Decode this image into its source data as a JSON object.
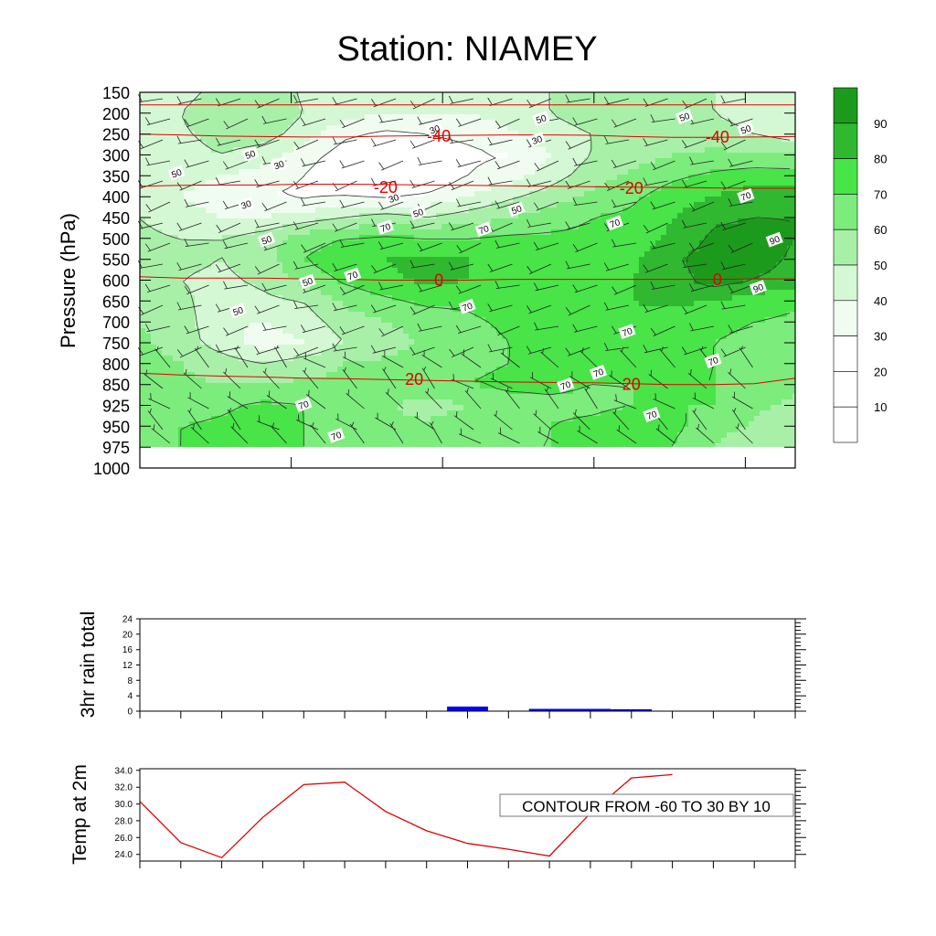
{
  "title": "Station: NIAMEY",
  "colors": {
    "contour_fill": [
      "#ffffff",
      "#ffffff",
      "#ffffff",
      "#f0fcf0",
      "#d4f8d4",
      "#a8f0a8",
      "#7cec7c",
      "#48e448",
      "#30b830",
      "#1c9a1c"
    ],
    "temperature_line": "#e00000",
    "rain_bar": "#0000ff",
    "temp2m_line": "#e00000"
  },
  "chart_data": [
    {
      "type": "heatmap",
      "name": "time-pressure cross section",
      "ylabel": "Pressure (hPa)",
      "yticks": [
        150,
        200,
        250,
        300,
        350,
        400,
        450,
        500,
        550,
        600,
        650,
        700,
        750,
        800,
        850,
        925,
        950,
        975,
        1000
      ],
      "y_reversed": true,
      "time_steps": 17,
      "fill_quantity": "relative humidity (%)",
      "colorbar": {
        "levels": [
          10,
          20,
          30,
          40,
          50,
          60,
          70,
          80,
          90
        ]
      },
      "rh_rows_top_to_bottom": [
        [
          50,
          45,
          55,
          60,
          48,
          45,
          40,
          40,
          45,
          45,
          50,
          55,
          55,
          50,
          50,
          45,
          45
        ],
        [
          50,
          50,
          60,
          60,
          50,
          45,
          40,
          40,
          40,
          45,
          50,
          55,
          55,
          55,
          50,
          45,
          45
        ],
        [
          45,
          48,
          55,
          55,
          45,
          32,
          28,
          30,
          32,
          38,
          45,
          50,
          52,
          55,
          55,
          50,
          45
        ],
        [
          40,
          45,
          50,
          45,
          35,
          25,
          20,
          25,
          28,
          30,
          40,
          50,
          55,
          60,
          62,
          62,
          60
        ],
        [
          42,
          45,
          40,
          35,
          30,
          20,
          15,
          20,
          30,
          35,
          45,
          55,
          62,
          68,
          72,
          75,
          75
        ],
        [
          45,
          40,
          35,
          30,
          28,
          30,
          28,
          32,
          40,
          48,
          55,
          62,
          68,
          75,
          80,
          85,
          85
        ],
        [
          50,
          45,
          40,
          40,
          45,
          50,
          55,
          50,
          55,
          60,
          65,
          70,
          72,
          80,
          88,
          90,
          90
        ],
        [
          52,
          50,
          50,
          55,
          65,
          70,
          72,
          70,
          70,
          72,
          72,
          72,
          75,
          82,
          92,
          95,
          90
        ],
        [
          55,
          52,
          50,
          55,
          70,
          78,
          80,
          82,
          80,
          80,
          80,
          80,
          78,
          88,
          95,
          95,
          88
        ],
        [
          55,
          50,
          48,
          52,
          62,
          72,
          78,
          82,
          80,
          78,
          78,
          80,
          80,
          85,
          95,
          90,
          85
        ],
        [
          58,
          52,
          45,
          48,
          50,
          62,
          68,
          72,
          72,
          75,
          75,
          78,
          80,
          82,
          80,
          75,
          72
        ],
        [
          60,
          55,
          42,
          40,
          45,
          55,
          60,
          65,
          68,
          72,
          72,
          75,
          78,
          75,
          72,
          70,
          68
        ],
        [
          62,
          55,
          45,
          35,
          40,
          50,
          55,
          62,
          65,
          70,
          70,
          72,
          72,
          72,
          70,
          68,
          65
        ],
        [
          65,
          60,
          55,
          50,
          55,
          60,
          62,
          65,
          68,
          70,
          72,
          72,
          72,
          72,
          70,
          68,
          65
        ],
        [
          65,
          62,
          60,
          60,
          62,
          62,
          65,
          68,
          70,
          72,
          72,
          70,
          70,
          70,
          70,
          66,
          62
        ],
        [
          65,
          65,
          68,
          72,
          70,
          65,
          62,
          55,
          60,
          66,
          68,
          68,
          70,
          70,
          70,
          62,
          58
        ],
        [
          65,
          70,
          72,
          75,
          70,
          65,
          62,
          62,
          65,
          66,
          70,
          72,
          75,
          72,
          66,
          58,
          50
        ],
        [
          65,
          70,
          80,
          75,
          70,
          65,
          65,
          68,
          70,
          70,
          70,
          76,
          76,
          70,
          60,
          50,
          52
        ]
      ],
      "temperature_contours": [
        {
          "label": "-40",
          "y_hPa": [
            250,
            252,
            255,
            256,
            257,
            257,
            255,
            254,
            253,
            252,
            252,
            253,
            256,
            258,
            258,
            257,
            256
          ]
        },
        {
          "label": "-20",
          "y_hPa": [
            375,
            373,
            372,
            372,
            370,
            370,
            371,
            372,
            373,
            374,
            375,
            376,
            377,
            378,
            379,
            380,
            380
          ]
        },
        {
          "label": "0",
          "y_hPa": [
            592,
            595,
            595,
            595,
            597,
            598,
            600,
            600,
            600,
            598,
            598,
            598,
            598,
            598,
            598,
            597,
            597
          ]
        },
        {
          "label": "20",
          "y_hPa": [
            823,
            827,
            830,
            832,
            835,
            836,
            838,
            840,
            842,
            844,
            845,
            846,
            848,
            850,
            850,
            848,
            835
          ]
        }
      ],
      "upper_line_y_hPa": 180,
      "rh_contour_labels": [
        {
          "text": "50",
          "t": 9.8,
          "p": 215
        },
        {
          "text": "50",
          "t": 13.3,
          "p": 210
        },
        {
          "text": "50",
          "t": 14.8,
          "p": 240
        },
        {
          "text": "30",
          "t": 7.2,
          "p": 240
        },
        {
          "text": "30",
          "t": 9.7,
          "p": 265
        },
        {
          "text": "50",
          "t": 2.7,
          "p": 300
        },
        {
          "text": "30",
          "t": 3.4,
          "p": 325
        },
        {
          "text": "50",
          "t": 0.9,
          "p": 345
        },
        {
          "text": "30",
          "t": 6.2,
          "p": 405
        },
        {
          "text": "30",
          "t": 2.6,
          "p": 420
        },
        {
          "text": "50",
          "t": 6.8,
          "p": 440
        },
        {
          "text": "50",
          "t": 9.2,
          "p": 432
        },
        {
          "text": "70",
          "t": 14.8,
          "p": 400
        },
        {
          "text": "70",
          "t": 11.6,
          "p": 465
        },
        {
          "text": "70",
          "t": 6.0,
          "p": 475
        },
        {
          "text": "70",
          "t": 8.4,
          "p": 480
        },
        {
          "text": "50",
          "t": 3.1,
          "p": 505
        },
        {
          "text": "90",
          "t": 15.5,
          "p": 505
        },
        {
          "text": "70",
          "t": 5.2,
          "p": 590
        },
        {
          "text": "50",
          "t": 4.1,
          "p": 605
        },
        {
          "text": "90",
          "t": 15.1,
          "p": 620
        },
        {
          "text": "70",
          "t": 8.0,
          "p": 665
        },
        {
          "text": "50",
          "t": 2.4,
          "p": 675
        },
        {
          "text": "70",
          "t": 11.9,
          "p": 725
        },
        {
          "text": "70",
          "t": 14.0,
          "p": 795
        },
        {
          "text": "70",
          "t": 11.2,
          "p": 823
        },
        {
          "text": "70",
          "t": 10.4,
          "p": 855
        },
        {
          "text": "70",
          "t": 4.0,
          "p": 925
        },
        {
          "text": "70",
          "t": 12.5,
          "p": 937
        },
        {
          "text": "70",
          "t": 4.8,
          "p": 962
        }
      ],
      "temperature_labels": [
        {
          "text": "-40",
          "t": 7.3,
          "p": 253
        },
        {
          "text": "-40",
          "t": 14.1,
          "p": 255
        },
        {
          "text": "-20",
          "t": 6.0,
          "p": 375
        },
        {
          "text": "-20",
          "t": 12.0,
          "p": 378
        },
        {
          "text": "0",
          "t": 7.3,
          "p": 598
        },
        {
          "text": "0",
          "t": 14.1,
          "p": 597
        },
        {
          "text": "20",
          "t": 6.7,
          "p": 835
        },
        {
          "text": "20",
          "t": 12.0,
          "p": 847
        }
      ],
      "has_wind_barbs": true
    },
    {
      "type": "bar",
      "ylabel": "3hr rain total",
      "ylim": [
        0,
        24
      ],
      "yticks": [
        0,
        4,
        8,
        12,
        16,
        20,
        24
      ],
      "x": [
        8,
        10,
        11,
        12
      ],
      "values": [
        1.2,
        0.6,
        0.6,
        0.5
      ],
      "x_ticks": 17
    },
    {
      "type": "line",
      "ylabel": "Temp at 2m",
      "ylim": [
        23.2,
        34.2
      ],
      "yticks": [
        "24.0",
        "26.0",
        "28.0",
        "30.0",
        "32.0",
        "34.0"
      ],
      "x": [
        0,
        1,
        2,
        3,
        4,
        5,
        6,
        7,
        8,
        9,
        10,
        11,
        12,
        13
      ],
      "values": [
        30.3,
        25.4,
        23.6,
        28.4,
        32.3,
        32.6,
        29.1,
        26.8,
        25.3,
        24.6,
        23.8,
        28.9,
        33.1,
        33.5
      ],
      "x_ticks": 17,
      "annotation": "CONTOUR FROM -60 TO 30 BY 10"
    }
  ]
}
